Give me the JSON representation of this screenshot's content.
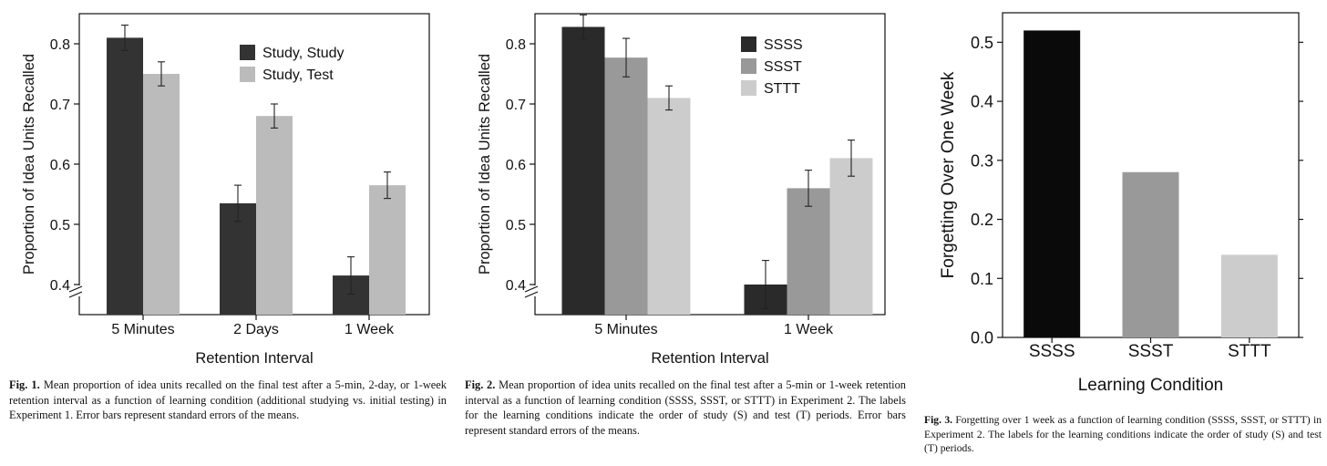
{
  "chart_data": [
    {
      "type": "bar",
      "title": "",
      "xlabel": "Retention Interval",
      "ylabel": "Proportion of Idea Units Recalled",
      "categories": [
        "5 Minutes",
        "2 Days",
        "1 Week"
      ],
      "ylim": [
        0.35,
        0.85
      ],
      "yticks": [
        "0.4",
        "0.5",
        "0.6",
        "0.7",
        "0.8"
      ],
      "axis_break": true,
      "legend_position": "top-right",
      "series": [
        {
          "name": "Study, Study",
          "color": "#333333",
          "values": [
            0.81,
            0.535,
            0.415
          ],
          "errors": [
            0.021,
            0.03,
            0.031
          ]
        },
        {
          "name": "Study, Test",
          "color": "#bbbbbb",
          "values": [
            0.75,
            0.68,
            0.565
          ],
          "errors": [
            0.02,
            0.02,
            0.022
          ]
        }
      ],
      "caption": {
        "label": "Fig. 1.",
        "text": "Mean proportion of idea units recalled on the final test after a 5-min, 2-day, or 1-week retention interval as a function of learning condition (additional studying vs. initial testing) in Experiment 1. Error bars represent standard errors of the means."
      }
    },
    {
      "type": "bar",
      "title": "",
      "xlabel": "Retention Interval",
      "ylabel": "Proportion of Idea Units Recalled",
      "categories": [
        "5 Minutes",
        "1 Week"
      ],
      "ylim": [
        0.35,
        0.85
      ],
      "yticks": [
        "0.4",
        "0.5",
        "0.6",
        "0.7",
        "0.8"
      ],
      "axis_break": true,
      "legend_position": "top-right",
      "series": [
        {
          "name": "SSSS",
          "color": "#2a2a2a",
          "values": [
            0.828,
            0.4
          ],
          "errors": [
            0.02,
            0.04
          ]
        },
        {
          "name": "SSST",
          "color": "#999999",
          "values": [
            0.777,
            0.56
          ],
          "errors": [
            0.032,
            0.03
          ]
        },
        {
          "name": "STTT",
          "color": "#cccccc",
          "values": [
            0.71,
            0.61
          ],
          "errors": [
            0.02,
            0.03
          ]
        }
      ],
      "caption": {
        "label": "Fig. 2.",
        "text": "Mean proportion of idea units recalled on the final test after a 5-min or 1-week retention interval as a function of learning condition (SSSS, SSST, or STTT) in Experiment 2. The labels for the learning conditions indicate the order of study (S) and test (T) periods. Error bars represent standard errors of the means."
      }
    },
    {
      "type": "bar",
      "title": "",
      "xlabel": "Learning Condition",
      "ylabel": "Forgetting Over One Week",
      "categories": [
        "SSSS",
        "SSST",
        "STTT"
      ],
      "ylim": [
        0.0,
        0.55
      ],
      "yticks": [
        "0.0",
        "0.1",
        "0.2",
        "0.3",
        "0.4",
        "0.5"
      ],
      "axis_break": false,
      "series": [
        {
          "name": "Forgetting",
          "colors": [
            "#0a0a0a",
            "#999999",
            "#cccccc"
          ],
          "values": [
            0.52,
            0.28,
            0.14
          ]
        }
      ],
      "caption": {
        "label": "Fig. 3.",
        "text": "Forgetting over 1 week as a function of learning condition (SSSS, SSST, or STTT) in Experiment 2. The labels for the learning conditions indicate the order of study (S) and test (T) periods."
      }
    }
  ]
}
